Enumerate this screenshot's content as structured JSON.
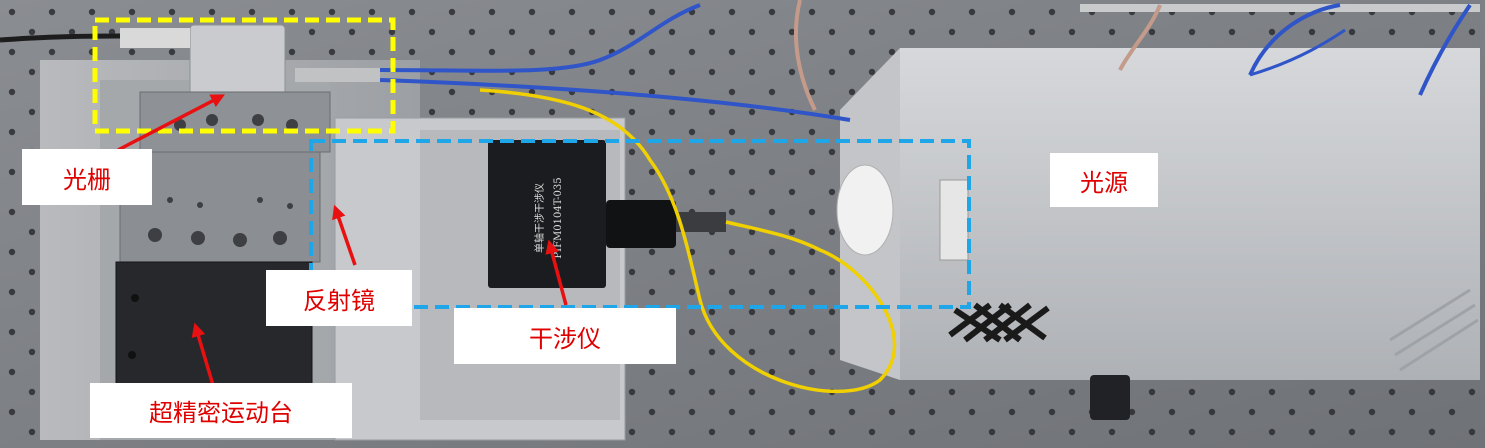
{
  "annotations": {
    "grating": "光栅",
    "light_source": "光源",
    "mirror": "反射镜",
    "interferometer": "干涉仪",
    "stage": "超精密运动台"
  },
  "device": {
    "model_line1": "单轴干涉干涉仪",
    "model_line2": "PIFM0104T-035"
  },
  "colors": {
    "label_text": "#e00000",
    "arrow": "#e81010",
    "grating_box": "#ffff00",
    "interferometer_box": "#1ea6e8",
    "fiber_blue": "#2f55c8",
    "fiber_yellow": "#f0d000"
  }
}
